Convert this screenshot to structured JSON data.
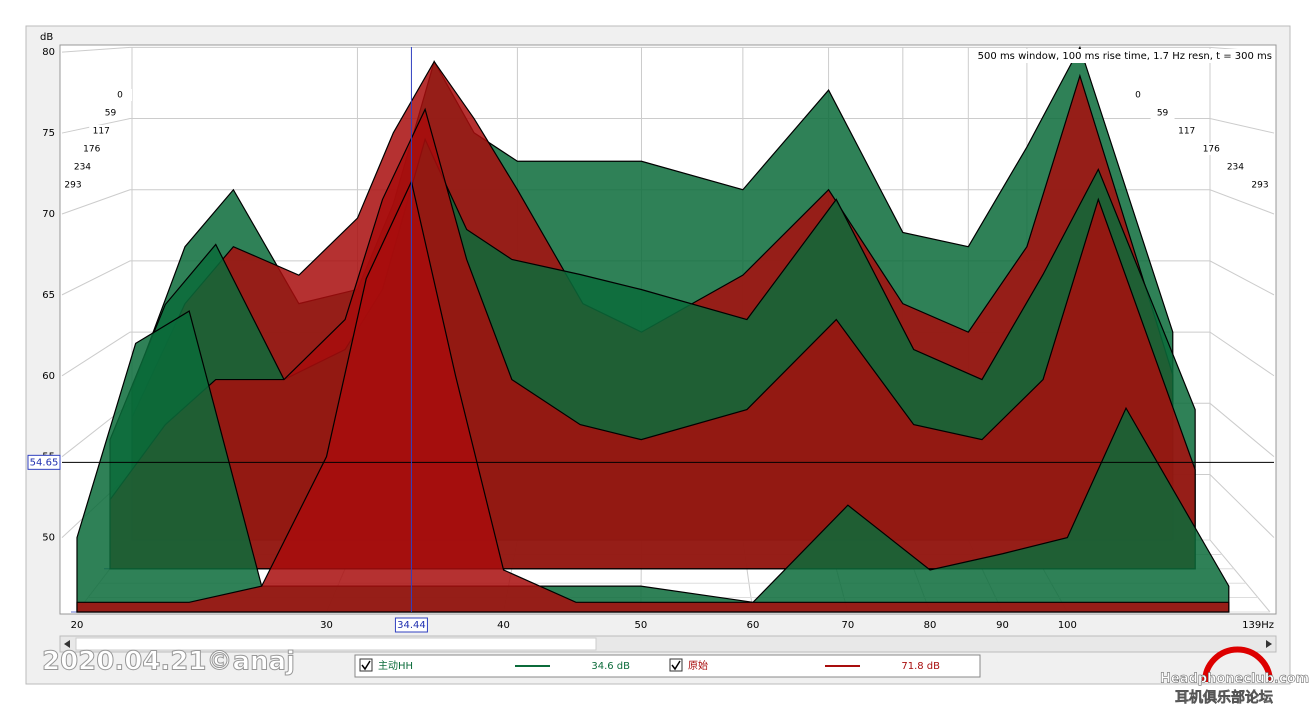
{
  "chart_data": {
    "type": "waterfall",
    "annotation": "500 ms window, 100 ms rise time,  1.7 Hz resn, t = 300 ms",
    "y_unit": "dB",
    "x": [
      20,
      22,
      24,
      27,
      30,
      32,
      34.44,
      37,
      40,
      45,
      50,
      60,
      70,
      80,
      90,
      100,
      110,
      130
    ],
    "xlim": [
      20,
      139
    ],
    "log_x": true,
    "xticks": [
      20,
      30,
      40,
      50,
      60,
      70,
      80,
      90,
      100,
      {
        "value": 139,
        "label": "139Hz"
      }
    ],
    "ylim": [
      45.4,
      80
    ],
    "yticks": [
      50,
      55,
      60,
      65,
      70,
      75,
      80
    ],
    "zlim": [
      0,
      293
    ],
    "zticks": [
      0,
      59,
      117,
      176,
      234,
      293
    ],
    "times": [
      0,
      117,
      293
    ],
    "grid": true,
    "cursor_x": 34.44,
    "cursor_y": 54.65,
    "series": [
      {
        "name": "主动HH",
        "color": "#0b6b3a",
        "readout": "34.6 dB",
        "slices": [
          [
            56,
            66,
            70,
            62,
            63,
            69,
            79,
            74,
            72,
            72,
            72,
            70,
            77,
            67,
            66,
            73,
            80,
            60
          ],
          [
            54,
            63,
            67,
            58,
            60,
            64,
            74,
            68,
            66,
            65,
            64,
            62,
            70,
            60,
            58,
            65,
            72,
            56
          ],
          [
            50,
            62,
            64,
            47,
            47,
            47,
            47,
            47,
            47,
            47,
            47,
            46,
            52,
            48,
            49,
            50,
            58,
            47
          ]
        ]
      },
      {
        "name": "原始",
        "color": "#a80d0d",
        "readout": "71.8 dB",
        "slices": [
          [
            54,
            62,
            66,
            64,
            68,
            74,
            79,
            75,
            70,
            62,
            60,
            64,
            70,
            62,
            60,
            66,
            78,
            57
          ],
          [
            50,
            55,
            58,
            58,
            62,
            70,
            76,
            66,
            58,
            55,
            54,
            56,
            62,
            55,
            54,
            58,
            70,
            52
          ],
          [
            46,
            46,
            46,
            47,
            55,
            66,
            72,
            60,
            48,
            46,
            46,
            46,
            46,
            46,
            46,
            46,
            46,
            46
          ]
        ]
      }
    ]
  },
  "watermark": "2020.04.21©anaj",
  "logo": {
    "line1": "Headphoneclub.com",
    "line2": "耳机俱乐部论坛"
  }
}
